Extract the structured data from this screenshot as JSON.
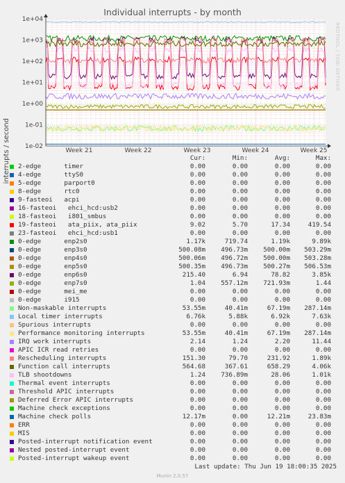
{
  "chart_data": {
    "type": "line",
    "title": "Individual interrupts - by month",
    "ylabel": "interrupts / second",
    "yscale": "log",
    "ylim": [
      0.01,
      10000
    ],
    "yticks": [
      "1e-02",
      "1e-01",
      "1e+00",
      "1e+01",
      "1e+02",
      "1e+03",
      "1e+04"
    ],
    "xticks": [
      "Week 21",
      "Week 22",
      "Week 23",
      "Week 24",
      "Week 25"
    ],
    "watermark": "RRDTOOL / TOBI OETIKER",
    "headers": [
      "Cur:",
      "Min:",
      "Avg:",
      "Max:"
    ],
    "series": [
      {
        "name": "2-edge      timer",
        "color": "#00cc00",
        "cur": "0.00",
        "min": "0.00",
        "avg": "0.00",
        "max": "0.00"
      },
      {
        "name": "4-edge      ttyS0",
        "color": "#0066b3",
        "cur": "0.00",
        "min": "0.00",
        "avg": "0.00",
        "max": "0.00"
      },
      {
        "name": "5-edge      parport0",
        "color": "#ff8000",
        "cur": "0.00",
        "min": "0.00",
        "avg": "0.00",
        "max": "0.00"
      },
      {
        "name": "8-edge      rtc0",
        "color": "#ffcc00",
        "cur": "0.00",
        "min": "0.00",
        "avg": "0.00",
        "max": "0.00"
      },
      {
        "name": "9-fasteoi   acpi",
        "color": "#330099",
        "cur": "0.00",
        "min": "0.00",
        "avg": "0.00",
        "max": "0.00"
      },
      {
        "name": "16-fasteoi   ehci_hcd:usb2",
        "color": "#990099",
        "cur": "0.00",
        "min": "0.00",
        "avg": "0.00",
        "max": "0.00"
      },
      {
        "name": "18-fasteoi   i801_smbus",
        "color": "#ccff00",
        "cur": "0.00",
        "min": "0.00",
        "avg": "0.00",
        "max": "0.00"
      },
      {
        "name": "19-fasteoi   ata_piix, ata_piix",
        "color": "#ff0000",
        "cur": "9.02",
        "min": "5.70",
        "avg": "17.34",
        "max": "419.54"
      },
      {
        "name": "23-fasteoi   ehci_hcd:usb1",
        "color": "#808080",
        "cur": "0.00",
        "min": "0.00",
        "avg": "0.00",
        "max": "0.00"
      },
      {
        "name": "0-edge      enp2s0",
        "color": "#008f00",
        "cur": "1.17k",
        "min": "719.74",
        "avg": "1.19k",
        "max": "9.89k"
      },
      {
        "name": "0-edge      enp3s0",
        "color": "#00487d",
        "cur": "500.08m",
        "min": "496.73m",
        "avg": "500.00m",
        "max": "503.29m"
      },
      {
        "name": "0-edge      enp4s0",
        "color": "#b35a00",
        "cur": "500.06m",
        "min": "496.72m",
        "avg": "500.00m",
        "max": "503.28m"
      },
      {
        "name": "0-edge      enp5s0",
        "color": "#b38f00",
        "cur": "500.35m",
        "min": "496.73m",
        "avg": "500.27m",
        "max": "506.53m"
      },
      {
        "name": "0-edge      enp6s0",
        "color": "#6b006b",
        "cur": "215.40",
        "min": "6.94",
        "avg": "78.82",
        "max": "3.85k"
      },
      {
        "name": "0-edge      enp7s0",
        "color": "#8fb300",
        "cur": "1.04",
        "min": "557.12m",
        "avg": "721.93m",
        "max": "1.44"
      },
      {
        "name": "0-edge      mei_me",
        "color": "#b30000",
        "cur": "0.00",
        "min": "0.00",
        "avg": "0.00",
        "max": "0.00"
      },
      {
        "name": "0-edge      i915",
        "color": "#bebebe",
        "cur": "0.00",
        "min": "0.00",
        "avg": "0.00",
        "max": "0.00"
      },
      {
        "name": "Non-maskable interrupts",
        "color": "#80ff80",
        "cur": "53.55m",
        "min": "40.41m",
        "avg": "67.19m",
        "max": "287.14m"
      },
      {
        "name": "Local timer interrupts",
        "color": "#80c9ff",
        "cur": "6.76k",
        "min": "5.88k",
        "avg": "6.92k",
        "max": "7.63k"
      },
      {
        "name": "Spurious interrupts",
        "color": "#ffc080",
        "cur": "0.00",
        "min": "0.00",
        "avg": "0.00",
        "max": "0.00"
      },
      {
        "name": "Performance monitoring interrupts",
        "color": "#ffe680",
        "cur": "53.55m",
        "min": "40.41m",
        "avg": "67.19m",
        "max": "287.14m"
      },
      {
        "name": "IRQ work interrupts",
        "color": "#aa80ff",
        "cur": "2.14",
        "min": "1.24",
        "avg": "2.20",
        "max": "11.44"
      },
      {
        "name": "APIC ICR read retries",
        "color": "#ee00cc",
        "cur": "0.00",
        "min": "0.00",
        "avg": "0.00",
        "max": "0.00"
      },
      {
        "name": "Rescheduling interrupts",
        "color": "#ff8080",
        "cur": "151.30",
        "min": "79.70",
        "avg": "231.92",
        "max": "1.89k"
      },
      {
        "name": "Function call interrupts",
        "color": "#666600",
        "cur": "564.68",
        "min": "367.61",
        "avg": "658.29",
        "max": "4.06k"
      },
      {
        "name": "TLB shootdowns",
        "color": "#ffbfff",
        "cur": "1.24",
        "min": "736.89m",
        "avg": "28.06",
        "max": "1.01k"
      },
      {
        "name": "Thermal event interrupts",
        "color": "#00ffcc",
        "cur": "0.00",
        "min": "0.00",
        "avg": "0.00",
        "max": "0.00"
      },
      {
        "name": "Threshold APIC interrupts",
        "color": "#cc6699",
        "cur": "0.00",
        "min": "0.00",
        "avg": "0.00",
        "max": "0.00"
      },
      {
        "name": "Deferred Error APIC interrupts",
        "color": "#999900",
        "cur": "0.00",
        "min": "0.00",
        "avg": "0.00",
        "max": "0.00"
      },
      {
        "name": "Machine check exceptions",
        "color": "#00cc00",
        "cur": "0.00",
        "min": "0.00",
        "avg": "0.00",
        "max": "0.00"
      },
      {
        "name": "Machine check polls",
        "color": "#0066b3",
        "cur": "12.17m",
        "min": "0.00",
        "avg": "12.21m",
        "max": "23.83m"
      },
      {
        "name": "ERR",
        "color": "#ff8000",
        "cur": "0.00",
        "min": "0.00",
        "avg": "0.00",
        "max": "0.00"
      },
      {
        "name": "MIS",
        "color": "#ffcc00",
        "cur": "0.00",
        "min": "0.00",
        "avg": "0.00",
        "max": "0.00"
      },
      {
        "name": "Posted-interrupt notification event",
        "color": "#330099",
        "cur": "0.00",
        "min": "0.00",
        "avg": "0.00",
        "max": "0.00"
      },
      {
        "name": "Nested posted-interrupt event",
        "color": "#990099",
        "cur": "0.00",
        "min": "0.00",
        "avg": "0.00",
        "max": "0.00"
      },
      {
        "name": "Posted-interrupt wakeup event",
        "color": "#ccff00",
        "cur": "0.00",
        "min": "0.00",
        "avg": "0.00",
        "max": "0.00"
      }
    ],
    "footer": "Last update: Thu Jun 19 18:00:35 2025",
    "credit": "Munin 2.0.57"
  }
}
